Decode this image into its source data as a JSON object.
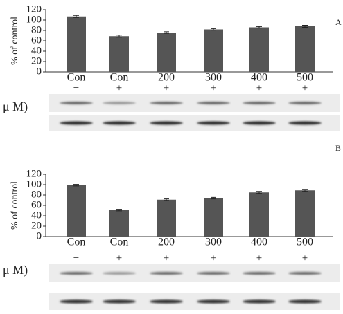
{
  "chart_data": [
    {
      "type": "bar",
      "panel_label": "A",
      "ylabel": "% of control",
      "row_label": "μ M)",
      "categories": [
        "Con",
        "Con",
        "200",
        "300",
        "400",
        "500"
      ],
      "treatment": [
        "−",
        "+",
        "+",
        "+",
        "+",
        "+"
      ],
      "values": [
        107,
        69,
        76,
        82,
        86,
        88
      ],
      "errors": [
        2,
        2,
        1.5,
        1.5,
        1.5,
        2
      ],
      "color": "#555555",
      "ylim": [
        0,
        120
      ],
      "yticks": [
        0,
        20,
        40,
        60,
        80,
        100,
        120
      ]
    },
    {
      "type": "bar",
      "panel_label": "B",
      "ylabel": "% of control",
      "row_label": "μ M)",
      "categories": [
        "Con",
        "Con",
        "200",
        "300",
        "400",
        "500"
      ],
      "treatment": [
        "−",
        "+",
        "+",
        "+",
        "+",
        "+"
      ],
      "values": [
        99,
        51,
        71,
        74,
        85,
        89
      ],
      "errors": [
        1.5,
        1.5,
        1.5,
        1.5,
        2,
        2
      ],
      "color": "#555555",
      "ylim": [
        0,
        120
      ],
      "yticks": [
        0,
        20,
        40,
        60,
        80,
        100,
        120
      ]
    }
  ]
}
